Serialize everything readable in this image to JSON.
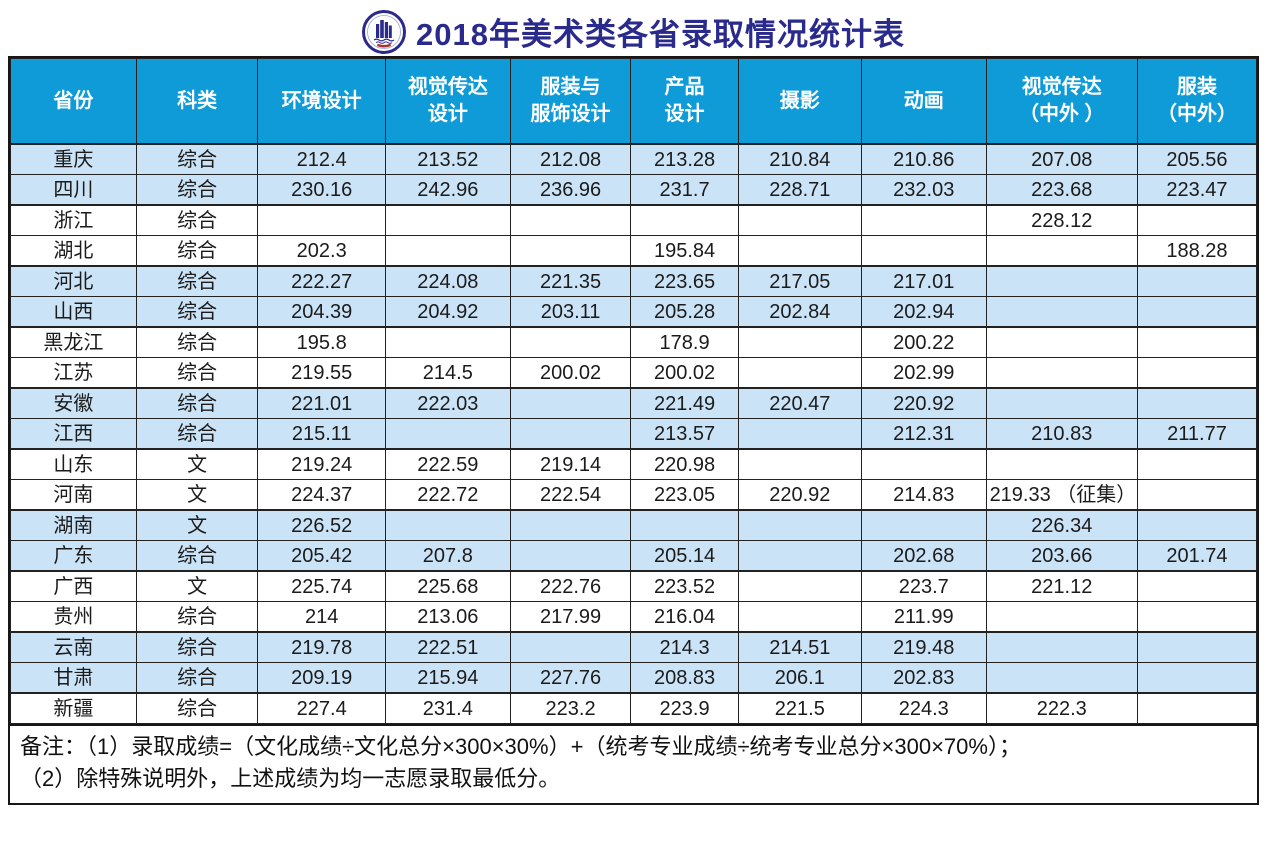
{
  "title": {
    "text": "2018年美术类各省录取情况统计表",
    "color": "#2a2a8c",
    "logo": "university-seal-icon"
  },
  "table": {
    "header_bg": "#0e9bd8",
    "stripe_bg": "#cbe3f6",
    "columns": [
      "省份",
      "科类",
      "环境设计",
      "视觉传达\n设计",
      "服装与\n服饰设计",
      "产品\n设计",
      "摄影",
      "动画",
      "视觉传达\n（中外 ）",
      "服装\n（中外）"
    ],
    "rows": [
      {
        "province": "重庆",
        "category": "综合",
        "values": [
          "212.4",
          "213.52",
          "212.08",
          "213.28",
          "210.84",
          "210.86",
          "207.08",
          "205.56"
        ]
      },
      {
        "province": "四川",
        "category": "综合",
        "values": [
          "230.16",
          "242.96",
          "236.96",
          "231.7",
          "228.71",
          "232.03",
          "223.68",
          "223.47"
        ]
      },
      {
        "province": "浙江",
        "category": "综合",
        "values": [
          "",
          "",
          "",
          "",
          "",
          "",
          "228.12",
          ""
        ]
      },
      {
        "province": "湖北",
        "category": "综合",
        "values": [
          "202.3",
          "",
          "",
          "195.84",
          "",
          "",
          "",
          "188.28"
        ]
      },
      {
        "province": "河北",
        "category": "综合",
        "values": [
          "222.27",
          "224.08",
          "221.35",
          "223.65",
          "217.05",
          "217.01",
          "",
          ""
        ]
      },
      {
        "province": "山西",
        "category": "综合",
        "values": [
          "204.39",
          "204.92",
          "203.11",
          "205.28",
          "202.84",
          "202.94",
          "",
          ""
        ]
      },
      {
        "province": "黑龙江",
        "category": "综合",
        "values": [
          "195.8",
          "",
          "",
          "178.9",
          "",
          "200.22",
          "",
          ""
        ]
      },
      {
        "province": "江苏",
        "category": "综合",
        "values": [
          "219.55",
          "214.5",
          "200.02",
          "200.02",
          "",
          "202.99",
          "",
          ""
        ]
      },
      {
        "province": "安徽",
        "category": "综合",
        "values": [
          "221.01",
          "222.03",
          "",
          "221.49",
          "220.47",
          "220.92",
          "",
          ""
        ]
      },
      {
        "province": "江西",
        "category": "综合",
        "values": [
          "215.11",
          "",
          "",
          "213.57",
          "",
          "212.31",
          "210.83",
          "211.77"
        ]
      },
      {
        "province": "山东",
        "category": "文",
        "values": [
          "219.24",
          "222.59",
          "219.14",
          "220.98",
          "",
          "",
          "",
          ""
        ]
      },
      {
        "province": "河南",
        "category": "文",
        "values": [
          "224.37",
          "222.72",
          "222.54",
          "223.05",
          "220.92",
          "214.83",
          "219.33 （征集）",
          ""
        ]
      },
      {
        "province": "湖南",
        "category": "文",
        "values": [
          "226.52",
          "",
          "",
          "",
          "",
          "",
          "226.34",
          ""
        ]
      },
      {
        "province": "广东",
        "category": "综合",
        "values": [
          "205.42",
          "207.8",
          "",
          "205.14",
          "",
          "202.68",
          "203.66",
          "201.74"
        ]
      },
      {
        "province": "广西",
        "category": "文",
        "values": [
          "225.74",
          "225.68",
          "222.76",
          "223.52",
          "",
          "223.7",
          "221.12",
          ""
        ]
      },
      {
        "province": "贵州",
        "category": "综合",
        "values": [
          "214",
          "213.06",
          "217.99",
          "216.04",
          "",
          "211.99",
          "",
          ""
        ]
      },
      {
        "province": "云南",
        "category": "综合",
        "values": [
          "219.78",
          "222.51",
          "",
          "214.3",
          "214.51",
          "219.48",
          "",
          ""
        ]
      },
      {
        "province": "甘肃",
        "category": "综合",
        "values": [
          "209.19",
          "215.94",
          "227.76",
          "208.83",
          "206.1",
          "202.83",
          "",
          ""
        ]
      },
      {
        "province": "新疆",
        "category": "综合",
        "values": [
          "227.4",
          "231.4",
          "223.2",
          "223.9",
          "221.5",
          "224.3",
          "222.3",
          ""
        ]
      }
    ]
  },
  "footnote": {
    "line1": "备注：（1）录取成绩=（文化成绩÷文化总分×300×30%）+（统考专业成绩÷统考专业总分×300×70%）；",
    "line2": "（2）除特殊说明外，上述成绩为均一志愿录取最低分。"
  }
}
